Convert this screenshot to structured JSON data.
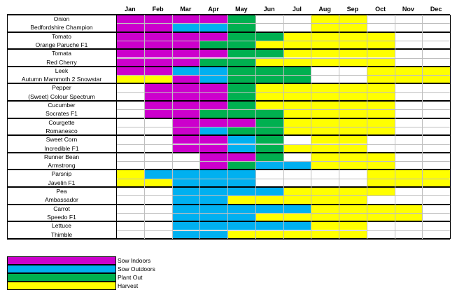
{
  "months": [
    "Jan",
    "Feb",
    "Mar",
    "Apr",
    "May",
    "Jun",
    "Jul",
    "Aug",
    "Sep",
    "Oct",
    "Nov",
    "Dec"
  ],
  "colors": {
    "sow_indoors": "#cc00cc",
    "sow_outdoors": "#00b0f0",
    "plant_out": "#00b050",
    "harvest": "#ffff00"
  },
  "legend": [
    {
      "key": "sow_indoors",
      "label": "Sow Indoors"
    },
    {
      "key": "sow_outdoors",
      "label": "Sow Outdoors"
    },
    {
      "key": "plant_out",
      "label": "Plant Out"
    },
    {
      "key": "harvest",
      "label": "Harvest"
    }
  ],
  "crops": [
    {
      "name": "Onion",
      "variety": "Bedfordshire Champion",
      "rows": [
        [
          "sow_indoors",
          "sow_indoors",
          "sow_indoors",
          "sow_indoors",
          "plant_out",
          "",
          "",
          "harvest",
          "harvest",
          "",
          "",
          ""
        ],
        [
          "sow_indoors",
          "sow_indoors",
          "sow_outdoors",
          "sow_outdoors",
          "plant_out",
          "",
          "",
          "harvest",
          "harvest",
          "",
          "",
          ""
        ]
      ]
    },
    {
      "name": "Tomato",
      "variety": "Orange Paruche F1",
      "rows": [
        [
          "sow_indoors",
          "sow_indoors",
          "sow_indoors",
          "sow_indoors",
          "plant_out",
          "plant_out",
          "harvest",
          "harvest",
          "harvest",
          "harvest",
          "",
          ""
        ],
        [
          "sow_indoors",
          "sow_indoors",
          "sow_indoors",
          "plant_out",
          "plant_out",
          "harvest",
          "harvest",
          "harvest",
          "harvest",
          "harvest",
          "",
          ""
        ]
      ]
    },
    {
      "name": "Tomata",
      "variety": "Red Cherry",
      "rows": [
        [
          "sow_indoors",
          "sow_indoors",
          "sow_indoors",
          "sow_indoors",
          "plant_out",
          "plant_out",
          "harvest",
          "harvest",
          "harvest",
          "harvest",
          "",
          ""
        ],
        [
          "sow_indoors",
          "sow_indoors",
          "sow_indoors",
          "plant_out",
          "plant_out",
          "harvest",
          "harvest",
          "harvest",
          "harvest",
          "harvest",
          "",
          ""
        ]
      ]
    },
    {
      "name": "Leek",
      "variety": "Autumn Mammoth 2 Snowstar",
      "rows": [
        [
          "sow_indoors",
          "sow_indoors",
          "sow_outdoors",
          "sow_outdoors",
          "plant_out",
          "plant_out",
          "plant_out",
          "",
          "",
          "harvest",
          "harvest",
          "harvest"
        ],
        [
          "harvest",
          "harvest",
          "sow_indoors",
          "sow_outdoors",
          "plant_out",
          "plant_out",
          "plant_out",
          "",
          "",
          "harvest",
          "harvest",
          "harvest"
        ]
      ]
    },
    {
      "name": "Pepper",
      "variety": "(Sweet) Colour Spectrum",
      "rows": [
        [
          "",
          "sow_indoors",
          "sow_indoors",
          "sow_indoors",
          "plant_out",
          "harvest",
          "harvest",
          "harvest",
          "harvest",
          "harvest",
          "",
          ""
        ],
        [
          "",
          "sow_indoors",
          "sow_indoors",
          "sow_indoors",
          "plant_out",
          "harvest",
          "harvest",
          "harvest",
          "harvest",
          "harvest",
          "",
          ""
        ]
      ]
    },
    {
      "name": "Cucumber",
      "variety": "Socrates F1",
      "rows": [
        [
          "",
          "sow_indoors",
          "sow_indoors",
          "sow_indoors",
          "plant_out",
          "harvest",
          "harvest",
          "harvest",
          "harvest",
          "harvest",
          "",
          ""
        ],
        [
          "",
          "sow_indoors",
          "sow_indoors",
          "plant_out",
          "plant_out",
          "plant_out",
          "harvest",
          "harvest",
          "harvest",
          "harvest",
          "",
          ""
        ]
      ]
    },
    {
      "name": "Courgette",
      "variety": "Romanesco",
      "rows": [
        [
          "",
          "",
          "sow_indoors",
          "sow_indoors",
          "sow_indoors",
          "plant_out",
          "harvest",
          "harvest",
          "harvest",
          "harvest",
          "",
          ""
        ],
        [
          "",
          "",
          "sow_indoors",
          "sow_outdoors",
          "plant_out",
          "plant_out",
          "harvest",
          "harvest",
          "harvest",
          "harvest",
          "",
          ""
        ]
      ]
    },
    {
      "name": "Sweet Corn",
      "variety": "Incredible F1",
      "rows": [
        [
          "",
          "",
          "sow_indoors",
          "sow_indoors",
          "sow_outdoors",
          "plant_out",
          "",
          "harvest",
          "harvest",
          "",
          "",
          ""
        ],
        [
          "",
          "",
          "sow_indoors",
          "sow_indoors",
          "sow_outdoors",
          "plant_out",
          "harvest",
          "harvest",
          "harvest",
          "",
          "",
          ""
        ]
      ]
    },
    {
      "name": "Runner Bean",
      "variety": "Armstrong",
      "rows": [
        [
          "",
          "",
          "",
          "sow_indoors",
          "sow_indoors",
          "plant_out",
          "",
          "harvest",
          "harvest",
          "harvest",
          "",
          ""
        ],
        [
          "",
          "",
          "",
          "sow_indoors",
          "plant_out",
          "sow_outdoors",
          "sow_outdoors",
          "harvest",
          "harvest",
          "harvest",
          "",
          ""
        ]
      ]
    },
    {
      "name": "Parsnip",
      "variety": "Javelin F1",
      "rows": [
        [
          "harvest",
          "sow_outdoors",
          "sow_outdoors",
          "sow_outdoors",
          "sow_outdoors",
          "",
          "",
          "",
          "",
          "harvest",
          "harvest",
          "harvest"
        ],
        [
          "harvest",
          "harvest",
          "sow_outdoors",
          "sow_outdoors",
          "sow_outdoors",
          "",
          "",
          "",
          "",
          "harvest",
          "harvest",
          "harvest"
        ]
      ]
    },
    {
      "name": "Pea",
      "variety": "Ambassador",
      "rows": [
        [
          "",
          "",
          "sow_outdoors",
          "sow_outdoors",
          "sow_outdoors",
          "sow_outdoors",
          "harvest",
          "harvest",
          "harvest",
          "harvest",
          "",
          ""
        ],
        [
          "",
          "",
          "sow_outdoors",
          "sow_outdoors",
          "harvest",
          "harvest",
          "harvest",
          "harvest",
          "harvest",
          "",
          "",
          ""
        ]
      ]
    },
    {
      "name": "Carrot",
      "variety": "Speedo F1",
      "rows": [
        [
          "",
          "",
          "sow_outdoors",
          "sow_outdoors",
          "sow_outdoors",
          "sow_outdoors",
          "sow_outdoors",
          "harvest",
          "harvest",
          "harvest",
          "harvest",
          ""
        ],
        [
          "",
          "",
          "sow_outdoors",
          "sow_outdoors",
          "sow_outdoors",
          "harvest",
          "harvest",
          "harvest",
          "harvest",
          "harvest",
          "harvest",
          ""
        ]
      ]
    },
    {
      "name": "Lettuce",
      "variety": "Thimble",
      "rows": [
        [
          "",
          "",
          "sow_outdoors",
          "sow_outdoors",
          "sow_outdoors",
          "sow_outdoors",
          "sow_outdoors",
          "harvest",
          "harvest",
          "",
          "",
          ""
        ],
        [
          "",
          "",
          "sow_outdoors",
          "sow_outdoors",
          "harvest",
          "harvest",
          "harvest",
          "harvest",
          "harvest",
          "",
          "",
          ""
        ]
      ]
    }
  ]
}
